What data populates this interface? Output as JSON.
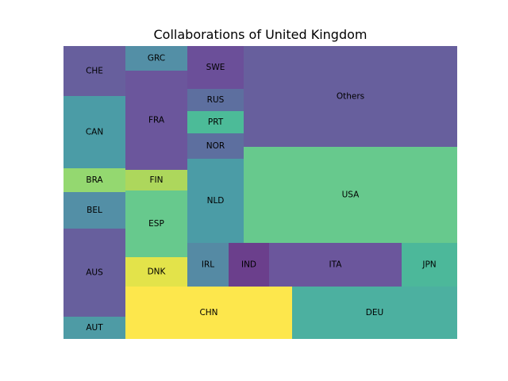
{
  "chart_data": {
    "type": "treemap",
    "title": "Collaborations of United Kingdom",
    "cells": [
      {
        "label": "CHE",
        "color": "#675f9d"
      },
      {
        "label": "CAN",
        "color": "#4b9ca6"
      },
      {
        "label": "BRA",
        "color": "#94d870"
      },
      {
        "label": "BEL",
        "color": "#538fa6"
      },
      {
        "label": "AUS",
        "color": "#675f9d"
      },
      {
        "label": "AUT",
        "color": "#4e9ba5"
      },
      {
        "label": "GRC",
        "color": "#538fa6"
      },
      {
        "label": "FRA",
        "color": "#6b569c"
      },
      {
        "label": "FIN",
        "color": "#add75c"
      },
      {
        "label": "ESP",
        "color": "#67c98d"
      },
      {
        "label": "DNK",
        "color": "#e3e34a"
      },
      {
        "label": "SWE",
        "color": "#6b4f99"
      },
      {
        "label": "RUS",
        "color": "#5d6f9f"
      },
      {
        "label": "PRT",
        "color": "#4cbb98"
      },
      {
        "label": "NOR",
        "color": "#5d6f9f"
      },
      {
        "label": "NLD",
        "color": "#4b9ca6"
      },
      {
        "label": "Others",
        "color": "#675f9d"
      },
      {
        "label": "USA",
        "color": "#67c98d"
      },
      {
        "label": "IRL",
        "color": "#558aa4"
      },
      {
        "label": "IND",
        "color": "#6b3f8c"
      },
      {
        "label": "ITA",
        "color": "#6b569c"
      },
      {
        "label": "JPN",
        "color": "#4cb89a"
      },
      {
        "label": "CHN",
        "color": "#fde74c"
      },
      {
        "label": "DEU",
        "color": "#4cb0a0"
      }
    ]
  }
}
